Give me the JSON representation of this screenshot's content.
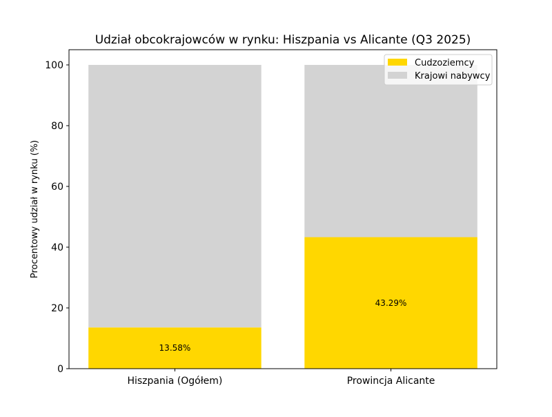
{
  "chart_data": {
    "type": "bar",
    "stacked": true,
    "title": "Udział obcokrajowców w rynku: Hiszpania vs Alicante (Q3 2025)",
    "xlabel": "",
    "ylabel": "Procentowy udział w rynku (%)",
    "categories": [
      "Hiszpania (Ogółem)",
      "Prowincja Alicante"
    ],
    "series": [
      {
        "name": "Cudzoziemcy",
        "values": [
          13.58,
          43.29
        ],
        "color": "#FFD700",
        "labels": [
          "13.58%",
          "43.29%"
        ]
      },
      {
        "name": "Krajowi nabywcy",
        "values": [
          86.42,
          56.71
        ],
        "color": "#D3D3D3"
      }
    ],
    "ylim": [
      0,
      105
    ],
    "yticks": [
      0,
      20,
      40,
      60,
      80,
      100
    ],
    "grid": false,
    "legend": "top-right"
  }
}
